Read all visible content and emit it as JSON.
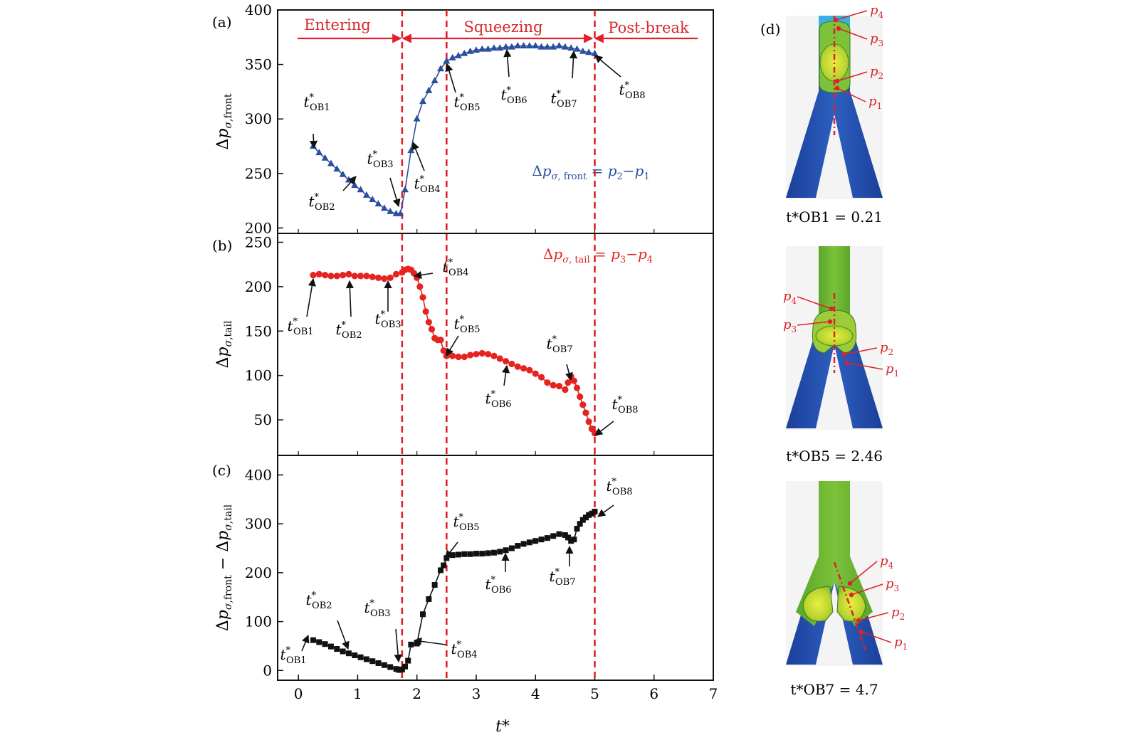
{
  "figure": {
    "panel_tags": [
      "(a)",
      "(b)",
      "(c)",
      "(d)"
    ],
    "phases": [
      "Entering",
      "Squeezing",
      "Post-break"
    ],
    "phase_boundaries": [
      1.75,
      2.5,
      5.0
    ],
    "xlabel": "t*",
    "x_ticks": [
      "0",
      "1",
      "2",
      "3",
      "4",
      "5",
      "6",
      "7"
    ],
    "xlim": [
      -0.35,
      7
    ]
  },
  "colors": {
    "front": "#2b4fa0",
    "tail": "#e52421",
    "diff": "#111111",
    "guide": "#e0202a",
    "annotation_red": "#d9262a"
  },
  "chart_data": [
    {
      "type": "line",
      "panel": "(a)",
      "ylabel": "Δpσ,front",
      "ylim": [
        195,
        400
      ],
      "yticks": [
        "200",
        "250",
        "300",
        "350",
        "400"
      ],
      "formula": "Δpσ,front = p2 − p1",
      "marker": "triangle",
      "series": [
        {
          "x": [
            0.25,
            0.35,
            0.45,
            0.55,
            0.65,
            0.75,
            0.85,
            0.95,
            1.05,
            1.15,
            1.25,
            1.35,
            1.45,
            1.55,
            1.65,
            1.72,
            1.8,
            1.9,
            2.0,
            2.1,
            2.2,
            2.3,
            2.4,
            2.5,
            2.6,
            2.7,
            2.8,
            2.9,
            3.0,
            3.1,
            3.2,
            3.3,
            3.4,
            3.5,
            3.6,
            3.7,
            3.8,
            3.9,
            4.0,
            4.1,
            4.2,
            4.3,
            4.4,
            4.5,
            4.6,
            4.7,
            4.8,
            4.9,
            5.0
          ],
          "y": [
            275,
            269,
            264,
            259,
            254,
            249,
            244,
            239,
            235,
            230,
            226,
            222,
            218,
            215,
            213,
            213,
            235,
            271,
            300,
            316,
            326,
            335,
            346,
            353,
            356,
            358,
            360,
            362,
            363,
            364,
            364,
            365,
            365,
            366,
            366,
            367,
            367,
            367,
            367,
            366,
            366,
            366,
            367,
            366,
            365,
            364,
            362,
            361,
            360
          ]
        }
      ],
      "annotations": [
        "t*OB1",
        "t*OB2",
        "t*OB3",
        "t*OB4",
        "t*OB5",
        "t*OB6",
        "t*OB7",
        "t*OB8"
      ]
    },
    {
      "type": "line",
      "panel": "(b)",
      "ylabel": "Δpσ,tail",
      "ylim": [
        10,
        260
      ],
      "yticks": [
        "50",
        "100",
        "150",
        "200",
        "250"
      ],
      "formula": "Δpσ,tail = p3 − p4",
      "marker": "circle",
      "series": [
        {
          "x": [
            0.25,
            0.35,
            0.45,
            0.55,
            0.65,
            0.75,
            0.85,
            0.95,
            1.05,
            1.15,
            1.25,
            1.35,
            1.45,
            1.55,
            1.65,
            1.75,
            1.8,
            1.85,
            1.9,
            1.95,
            2.0,
            2.05,
            2.1,
            2.15,
            2.2,
            2.25,
            2.3,
            2.35,
            2.4,
            2.45,
            2.5,
            2.6,
            2.7,
            2.8,
            2.9,
            3.0,
            3.1,
            3.2,
            3.3,
            3.4,
            3.5,
            3.6,
            3.7,
            3.8,
            3.9,
            4.0,
            4.1,
            4.2,
            4.3,
            4.4,
            4.5,
            4.55,
            4.6,
            4.65,
            4.7,
            4.75,
            4.8,
            4.85,
            4.9,
            4.95,
            5.0
          ],
          "y": [
            213,
            214,
            213,
            212,
            212,
            213,
            214,
            212,
            212,
            212,
            211,
            210,
            209,
            210,
            214,
            216,
            219,
            220,
            219,
            215,
            210,
            200,
            188,
            172,
            160,
            152,
            142,
            140,
            140,
            128,
            122,
            122,
            121,
            121,
            123,
            124,
            125,
            124,
            122,
            119,
            116,
            113,
            110,
            108,
            106,
            102,
            98,
            92,
            89,
            88,
            84,
            92,
            99,
            94,
            86,
            76,
            67,
            58,
            48,
            40,
            35
          ]
        }
      ],
      "annotations": [
        "t*OB1",
        "t*OB2",
        "t*OB3",
        "t*OB4",
        "t*OB5",
        "t*OB6",
        "t*OB7",
        "t*OB8"
      ]
    },
    {
      "type": "line",
      "panel": "(c)",
      "ylabel": "Δpσ,front − Δpσ,tail",
      "ylim": [
        -20,
        440
      ],
      "yticks": [
        "0",
        "100",
        "200",
        "300",
        "400"
      ],
      "marker": "square",
      "series": [
        {
          "x": [
            0.25,
            0.35,
            0.45,
            0.55,
            0.65,
            0.75,
            0.85,
            0.95,
            1.05,
            1.15,
            1.25,
            1.35,
            1.45,
            1.55,
            1.65,
            1.7,
            1.75,
            1.8,
            1.85,
            1.9,
            2.0,
            2.1,
            2.2,
            2.3,
            2.4,
            2.45,
            2.5,
            2.6,
            2.7,
            2.8,
            2.9,
            3.0,
            3.1,
            3.2,
            3.3,
            3.4,
            3.5,
            3.6,
            3.7,
            3.8,
            3.9,
            4.0,
            4.1,
            4.2,
            4.3,
            4.4,
            4.5,
            4.55,
            4.6,
            4.65,
            4.7,
            4.75,
            4.8,
            4.85,
            4.9,
            4.95,
            5.0
          ],
          "y": [
            62,
            58,
            54,
            49,
            44,
            39,
            35,
            31,
            27,
            23,
            19,
            15,
            11,
            7,
            3,
            1,
            2,
            8,
            20,
            53,
            55,
            115,
            146,
            175,
            205,
            215,
            230,
            236,
            237,
            238,
            238,
            239,
            239,
            240,
            241,
            243,
            246,
            250,
            255,
            259,
            262,
            265,
            268,
            271,
            275,
            279,
            277,
            272,
            265,
            268,
            290,
            300,
            308,
            313,
            318,
            321,
            325
          ]
        }
      ],
      "annotations": [
        "t*OB1",
        "t*OB2",
        "t*OB3",
        "t*OB4",
        "t*OB5",
        "t*OB6",
        "t*OB7",
        "t*OB8"
      ]
    }
  ],
  "snapshots": [
    {
      "caption": "t*OB1 = 0.21",
      "labels": [
        "p4",
        "p3",
        "p2",
        "p1"
      ]
    },
    {
      "caption": "t*OB5 = 2.46",
      "labels": [
        "p4",
        "p3",
        "p2",
        "p1"
      ]
    },
    {
      "caption": "t*OB7 = 4.7",
      "labels": [
        "p4",
        "p3",
        "p2",
        "p1"
      ]
    }
  ]
}
